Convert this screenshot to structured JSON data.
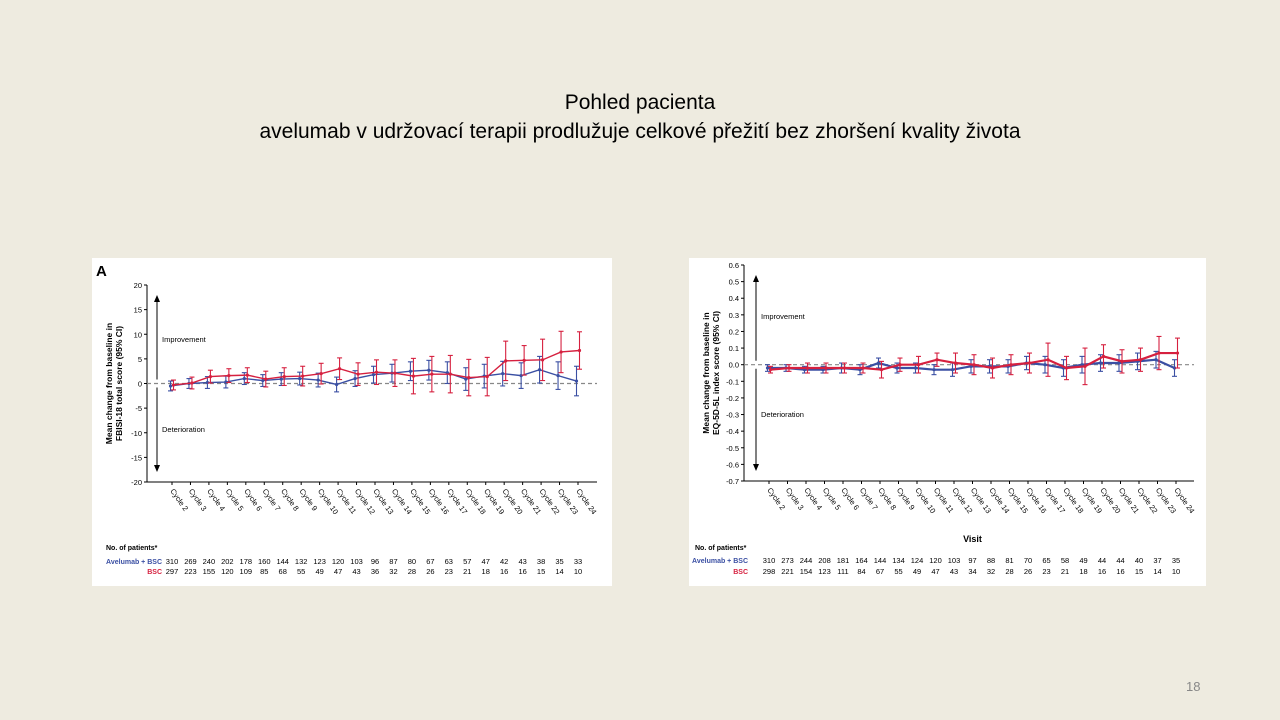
{
  "slide": {
    "title_line1": "Pohled pacienta",
    "title_line2": "avelumab v udržovací terapii  prodlužuje celkové přežití bez zhoršení kvality života",
    "page_number": "18"
  },
  "colors": {
    "avelumab": "#3a4fa3",
    "bsc": "#d6203f",
    "axis": "#000000",
    "baseline": "#888888"
  },
  "chart_data": [
    {
      "type": "line",
      "panel_label": "A",
      "ylabel_line1": "Mean change from baseline in",
      "ylabel_line2": "FBISI-18 total score (95% CI)",
      "xlabel": "",
      "improvement_label": "Improvement",
      "deterioration_label": "Deterioration",
      "ylim": [
        -20,
        20
      ],
      "yticks": [
        20,
        15,
        10,
        5,
        0,
        -5,
        -10,
        -15,
        -20
      ],
      "ytick_labels": [
        "20",
        "15",
        "10",
        "5",
        "0",
        "-5",
        "-10",
        "-15",
        "-20"
      ],
      "categories": [
        "Cycle 2",
        "Cycle 3",
        "Cycle 4",
        "Cycle 5",
        "Cycle 6",
        "Cycle 7",
        "Cycle 8",
        "Cycle 9",
        "Cycle 10",
        "Cycle 11",
        "Cycle 12",
        "Cycle 13",
        "Cycle 14",
        "Cycle 15",
        "Cycle 16",
        "Cycle 17",
        "Cycle 18",
        "Cycle 19",
        "Cycle 20",
        "Cycle 21",
        "Cycle 22",
        "Cycle 23",
        "Cycle 24"
      ],
      "series": [
        {
          "name": "Avelumab + BSC",
          "color": "#3a4fa3",
          "values": [
            -0.5,
            0,
            0.2,
            0.3,
            1.0,
            0.6,
            0.9,
            1.0,
            0.7,
            -0.2,
            1.0,
            1.8,
            2.1,
            2.5,
            2.7,
            2.2,
            0.9,
            1.5,
            2.0,
            1.6,
            2.8,
            1.6,
            0.5
          ],
          "ci": [
            1.0,
            1.0,
            1.2,
            1.2,
            1.2,
            1.2,
            1.3,
            1.3,
            1.4,
            1.5,
            1.6,
            1.7,
            1.8,
            1.9,
            2.0,
            2.2,
            2.3,
            2.4,
            2.5,
            2.6,
            2.7,
            2.8,
            3.0
          ]
        },
        {
          "name": "BSC",
          "color": "#d6203f",
          "values": [
            -0.3,
            0.1,
            1.4,
            1.6,
            1.7,
            0.9,
            1.4,
            1.5,
            2.0,
            3.0,
            1.9,
            2.3,
            2.1,
            1.5,
            1.9,
            1.9,
            1.2,
            1.4,
            4.6,
            4.7,
            4.8,
            6.4,
            6.7
          ],
          "ci": [
            1.0,
            1.2,
            1.3,
            1.4,
            1.5,
            1.6,
            1.8,
            2.0,
            2.1,
            2.2,
            2.3,
            2.5,
            2.7,
            3.6,
            3.6,
            3.8,
            3.7,
            3.9,
            4.0,
            3.0,
            4.2,
            4.2,
            3.8
          ]
        }
      ],
      "patients_header": "No. of patients*",
      "patients": [
        {
          "label": "Avelumab + BSC",
          "color": "#3a4fa3",
          "counts": [
            "310",
            "269",
            "240",
            "202",
            "178",
            "160",
            "144",
            "132",
            "123",
            "120",
            "103",
            "96",
            "87",
            "80",
            "67",
            "63",
            "57",
            "47",
            "42",
            "43",
            "38",
            "35",
            "33"
          ]
        },
        {
          "label": "BSC",
          "color": "#d6203f",
          "counts": [
            "297",
            "223",
            "155",
            "120",
            "109",
            "85",
            "68",
            "55",
            "49",
            "47",
            "43",
            "36",
            "32",
            "28",
            "26",
            "23",
            "21",
            "18",
            "16",
            "16",
            "15",
            "14",
            "10"
          ]
        }
      ]
    },
    {
      "type": "line",
      "panel_label": "",
      "ylabel_line1": "Mean change from baseline in",
      "ylabel_line2": "EQ-5D-5L index score (95% CI)",
      "xlabel": "Visit",
      "improvement_label": "Improvement",
      "deterioration_label": "Deterioration",
      "ylim": [
        -0.7,
        0.6
      ],
      "yticks": [
        0.6,
        0.5,
        0.4,
        0.3,
        0.2,
        0.1,
        0.0,
        -0.1,
        -0.2,
        -0.3,
        -0.4,
        -0.5,
        -0.6,
        -0.7
      ],
      "ytick_labels": [
        "0.6",
        "0.5",
        "0.4",
        "0.3",
        "0.2",
        "0.1",
        "0.0",
        "-0.1",
        "-0.2",
        "-0.3",
        "-0.4",
        "-0.5",
        "-0.6",
        "-0.7"
      ],
      "categories": [
        "Cycle 2",
        "Cycle 3",
        "Cycle 4",
        "Cycle 5",
        "Cycle 6",
        "Cycle 7",
        "Cycle 8",
        "Cycle 9",
        "Cycle 10",
        "Cycle 11",
        "Cycle 12",
        "Cycle 13",
        "Cycle 14",
        "Cycle 15",
        "Cycle 16",
        "Cycle 17",
        "Cycle 18",
        "Cycle 19",
        "Cycle 20",
        "Cycle 21",
        "Cycle 22",
        "Cycle 23",
        "Cycle 24"
      ],
      "series": [
        {
          "name": "Avelumab + BSC",
          "color": "#3a4fa3",
          "values": [
            -0.02,
            -0.02,
            -0.03,
            -0.03,
            -0.02,
            -0.03,
            0.01,
            -0.02,
            -0.02,
            -0.03,
            -0.03,
            -0.01,
            -0.01,
            -0.01,
            0.01,
            0.0,
            -0.02,
            0.0,
            0.01,
            0.01,
            0.02,
            0.03,
            -0.02
          ],
          "ci": [
            0.02,
            0.02,
            0.02,
            0.02,
            0.03,
            0.03,
            0.03,
            0.03,
            0.03,
            0.03,
            0.04,
            0.04,
            0.04,
            0.04,
            0.04,
            0.05,
            0.05,
            0.05,
            0.05,
            0.05,
            0.05,
            0.05,
            0.05
          ]
        },
        {
          "name": "BSC",
          "color": "#d6203f",
          "values": [
            -0.03,
            -0.02,
            -0.02,
            -0.02,
            -0.02,
            -0.02,
            -0.03,
            0.0,
            0.0,
            0.03,
            0.01,
            0.0,
            -0.02,
            0.0,
            0.01,
            0.03,
            -0.02,
            -0.01,
            0.05,
            0.02,
            0.03,
            0.07,
            0.07
          ],
          "ci": [
            0.02,
            0.02,
            0.03,
            0.03,
            0.03,
            0.03,
            0.05,
            0.04,
            0.05,
            0.04,
            0.06,
            0.06,
            0.06,
            0.06,
            0.06,
            0.1,
            0.07,
            0.11,
            0.07,
            0.07,
            0.07,
            0.1,
            0.09
          ]
        }
      ],
      "patients_header": "No. of patients*",
      "patients": [
        {
          "label": "Avelumab + BSC",
          "color": "#3a4fa3",
          "counts": [
            "310",
            "273",
            "244",
            "208",
            "181",
            "164",
            "144",
            "134",
            "124",
            "120",
            "103",
            "97",
            "88",
            "81",
            "70",
            "65",
            "58",
            "49",
            "44",
            "44",
            "40",
            "37",
            "35"
          ]
        },
        {
          "label": "BSC",
          "color": "#d6203f",
          "counts": [
            "298",
            "221",
            "154",
            "123",
            "111",
            "84",
            "67",
            "55",
            "49",
            "47",
            "43",
            "34",
            "32",
            "28",
            "26",
            "23",
            "21",
            "18",
            "16",
            "16",
            "15",
            "14",
            "10"
          ]
        }
      ]
    }
  ]
}
